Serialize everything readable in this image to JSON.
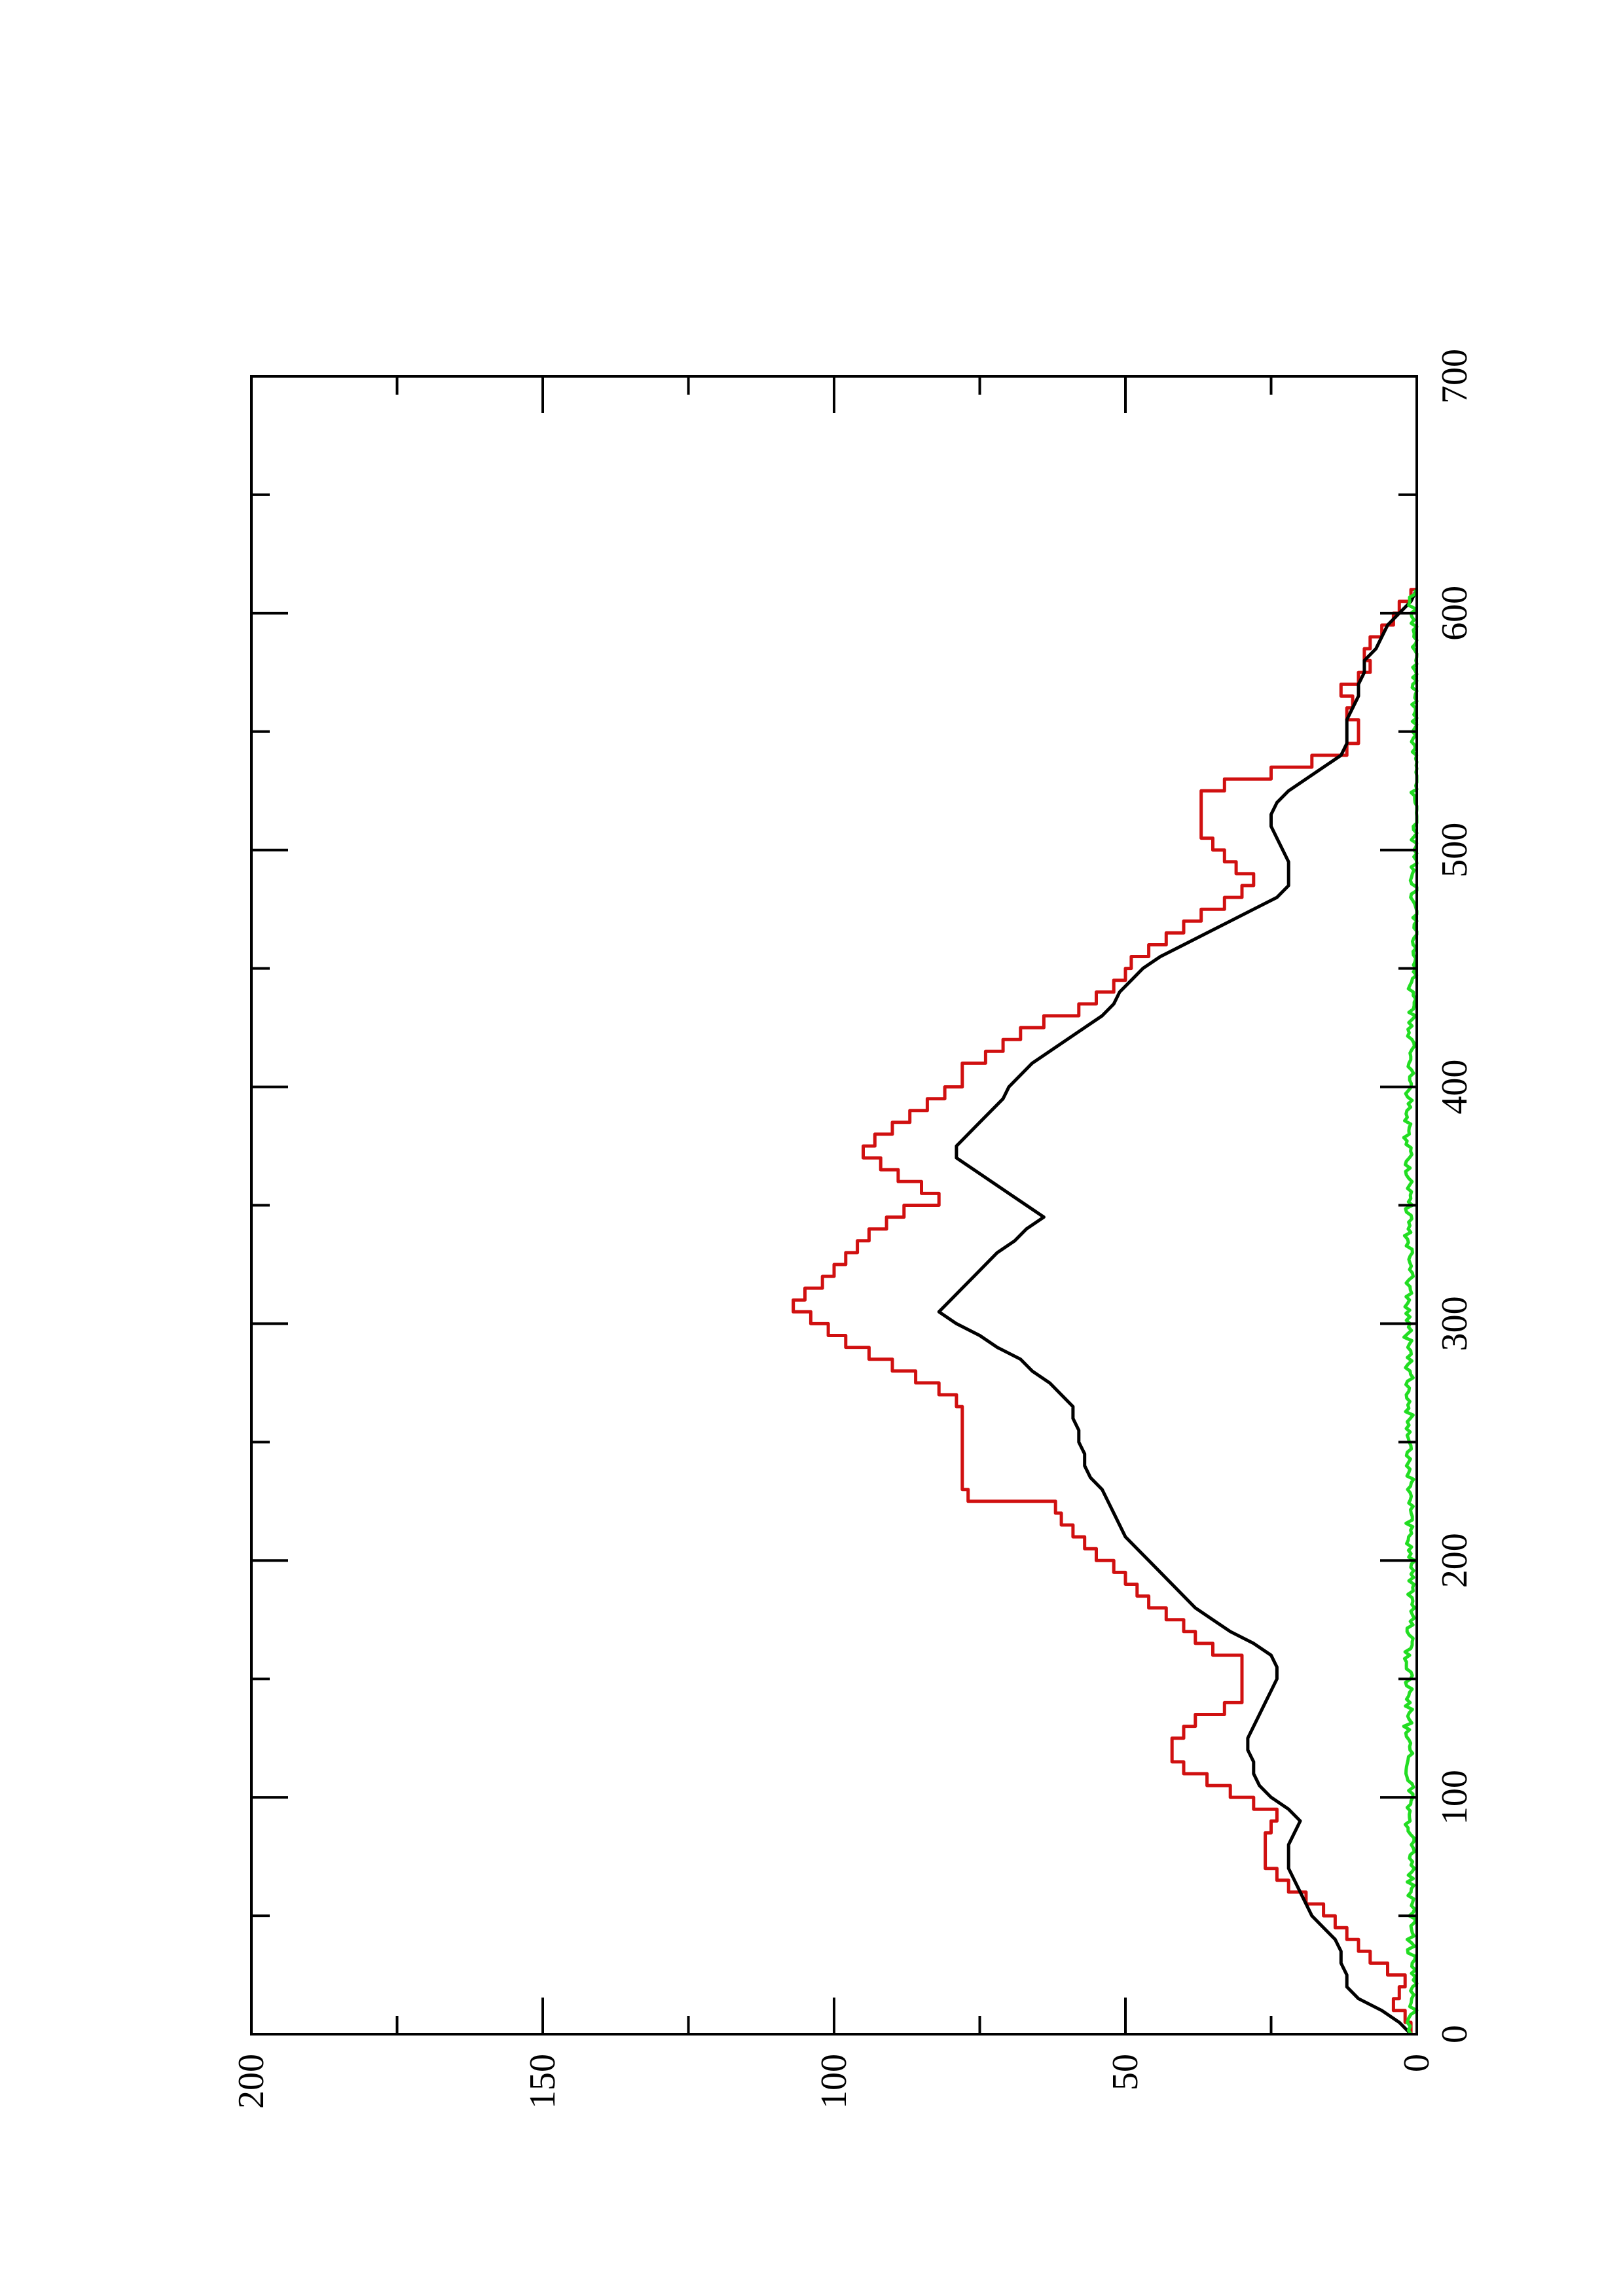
{
  "chart_data": {
    "type": "line",
    "title": "",
    "xlabel": "",
    "ylabel": "",
    "orientation": "rotated-90-ccw",
    "xlim": [
      0,
      700
    ],
    "ylim": [
      0,
      200
    ],
    "x_ticks": [
      0,
      100,
      200,
      300,
      400,
      500,
      600,
      700
    ],
    "y_ticks": [
      0,
      50,
      100,
      150,
      200
    ],
    "x_tick_labels": [
      "0",
      "100",
      "200",
      "300",
      "400",
      "500",
      "600",
      "700"
    ],
    "y_tick_labels": [
      "0",
      "50",
      "100",
      "150",
      "200"
    ],
    "grid": false,
    "legend": "none",
    "series": [
      {
        "color": "#d01010",
        "style": "step",
        "points": [
          [
            0,
            1
          ],
          [
            5,
            2
          ],
          [
            10,
            4
          ],
          [
            15,
            3
          ],
          [
            20,
            2
          ],
          [
            25,
            5
          ],
          [
            30,
            8
          ],
          [
            35,
            10
          ],
          [
            40,
            12
          ],
          [
            45,
            14
          ],
          [
            50,
            16
          ],
          [
            55,
            19
          ],
          [
            60,
            22
          ],
          [
            65,
            24
          ],
          [
            70,
            26
          ],
          [
            75,
            26
          ],
          [
            80,
            26
          ],
          [
            85,
            25
          ],
          [
            90,
            24
          ],
          [
            95,
            28
          ],
          [
            100,
            32
          ],
          [
            105,
            36
          ],
          [
            110,
            40
          ],
          [
            115,
            42
          ],
          [
            120,
            42
          ],
          [
            125,
            40
          ],
          [
            130,
            38
          ],
          [
            135,
            33
          ],
          [
            140,
            30
          ],
          [
            145,
            30
          ],
          [
            150,
            30
          ],
          [
            155,
            30
          ],
          [
            160,
            35
          ],
          [
            165,
            38
          ],
          [
            170,
            40
          ],
          [
            175,
            43
          ],
          [
            180,
            46
          ],
          [
            185,
            48
          ],
          [
            190,
            50
          ],
          [
            195,
            52
          ],
          [
            200,
            55
          ],
          [
            205,
            57
          ],
          [
            210,
            59
          ],
          [
            215,
            61
          ],
          [
            220,
            62
          ],
          [
            225,
            77
          ],
          [
            230,
            78
          ],
          [
            260,
            78
          ],
          [
            265,
            79
          ],
          [
            270,
            82
          ],
          [
            275,
            86
          ],
          [
            280,
            90
          ],
          [
            285,
            94
          ],
          [
            290,
            98
          ],
          [
            295,
            101
          ],
          [
            300,
            104
          ],
          [
            305,
            107
          ],
          [
            310,
            105
          ],
          [
            315,
            102
          ],
          [
            320,
            100
          ],
          [
            325,
            98
          ],
          [
            330,
            96
          ],
          [
            335,
            94
          ],
          [
            340,
            91
          ],
          [
            345,
            88
          ],
          [
            350,
            82
          ],
          [
            355,
            85
          ],
          [
            360,
            89
          ],
          [
            365,
            92
          ],
          [
            370,
            95
          ],
          [
            375,
            93
          ],
          [
            380,
            90
          ],
          [
            385,
            87
          ],
          [
            390,
            84
          ],
          [
            395,
            81
          ],
          [
            400,
            78
          ],
          [
            405,
            78
          ],
          [
            410,
            74
          ],
          [
            415,
            71
          ],
          [
            420,
            68
          ],
          [
            425,
            64
          ],
          [
            430,
            58
          ],
          [
            435,
            55
          ],
          [
            440,
            52
          ],
          [
            445,
            50
          ],
          [
            450,
            49
          ],
          [
            455,
            46
          ],
          [
            460,
            43
          ],
          [
            465,
            40
          ],
          [
            470,
            37
          ],
          [
            475,
            33
          ],
          [
            480,
            30
          ],
          [
            485,
            28
          ],
          [
            490,
            31
          ],
          [
            495,
            33
          ],
          [
            500,
            35
          ],
          [
            505,
            37
          ],
          [
            510,
            37
          ],
          [
            515,
            37
          ],
          [
            520,
            37
          ],
          [
            525,
            33
          ],
          [
            530,
            25
          ],
          [
            535,
            18
          ],
          [
            540,
            12
          ],
          [
            545,
            10
          ],
          [
            550,
            10
          ],
          [
            555,
            12
          ],
          [
            560,
            11
          ],
          [
            565,
            13
          ],
          [
            570,
            10
          ],
          [
            575,
            8
          ],
          [
            580,
            9
          ],
          [
            585,
            8
          ],
          [
            590,
            6
          ],
          [
            595,
            4
          ],
          [
            600,
            3
          ],
          [
            605,
            1
          ],
          [
            610,
            0
          ]
        ]
      },
      {
        "color": "#000000",
        "style": "line",
        "points": [
          [
            0,
            1
          ],
          [
            5,
            3
          ],
          [
            10,
            6
          ],
          [
            15,
            10
          ],
          [
            20,
            12
          ],
          [
            25,
            12
          ],
          [
            30,
            13
          ],
          [
            35,
            13
          ],
          [
            40,
            14
          ],
          [
            45,
            16
          ],
          [
            50,
            18
          ],
          [
            55,
            19
          ],
          [
            60,
            20
          ],
          [
            65,
            21
          ],
          [
            70,
            22
          ],
          [
            75,
            22
          ],
          [
            80,
            22
          ],
          [
            85,
            21
          ],
          [
            90,
            20
          ],
          [
            95,
            22
          ],
          [
            100,
            25
          ],
          [
            105,
            27
          ],
          [
            110,
            28
          ],
          [
            115,
            28
          ],
          [
            120,
            29
          ],
          [
            125,
            29
          ],
          [
            130,
            28
          ],
          [
            135,
            27
          ],
          [
            140,
            26
          ],
          [
            145,
            25
          ],
          [
            150,
            24
          ],
          [
            155,
            24
          ],
          [
            160,
            25
          ],
          [
            165,
            28
          ],
          [
            170,
            32
          ],
          [
            175,
            35
          ],
          [
            180,
            38
          ],
          [
            185,
            40
          ],
          [
            190,
            42
          ],
          [
            195,
            44
          ],
          [
            200,
            46
          ],
          [
            205,
            48
          ],
          [
            210,
            50
          ],
          [
            215,
            51
          ],
          [
            220,
            52
          ],
          [
            225,
            53
          ],
          [
            230,
            54
          ],
          [
            235,
            56
          ],
          [
            240,
            57
          ],
          [
            245,
            57
          ],
          [
            250,
            58
          ],
          [
            255,
            58
          ],
          [
            260,
            59
          ],
          [
            265,
            59
          ],
          [
            270,
            61
          ],
          [
            275,
            63
          ],
          [
            280,
            66
          ],
          [
            285,
            68
          ],
          [
            290,
            72
          ],
          [
            295,
            75
          ],
          [
            300,
            79
          ],
          [
            305,
            82
          ],
          [
            310,
            80
          ],
          [
            315,
            78
          ],
          [
            320,
            76
          ],
          [
            325,
            74
          ],
          [
            330,
            72
          ],
          [
            335,
            69
          ],
          [
            340,
            67
          ],
          [
            345,
            64
          ],
          [
            350,
            67
          ],
          [
            355,
            70
          ],
          [
            360,
            73
          ],
          [
            365,
            76
          ],
          [
            370,
            79
          ],
          [
            375,
            79
          ],
          [
            380,
            77
          ],
          [
            385,
            75
          ],
          [
            390,
            73
          ],
          [
            395,
            71
          ],
          [
            400,
            70
          ],
          [
            405,
            68
          ],
          [
            410,
            66
          ],
          [
            415,
            63
          ],
          [
            420,
            60
          ],
          [
            425,
            57
          ],
          [
            430,
            54
          ],
          [
            435,
            52
          ],
          [
            440,
            51
          ],
          [
            445,
            49
          ],
          [
            450,
            47
          ],
          [
            455,
            44
          ],
          [
            460,
            40
          ],
          [
            465,
            36
          ],
          [
            470,
            32
          ],
          [
            475,
            28
          ],
          [
            480,
            24
          ],
          [
            485,
            22
          ],
          [
            490,
            22
          ],
          [
            495,
            22
          ],
          [
            500,
            23
          ],
          [
            505,
            24
          ],
          [
            510,
            25
          ],
          [
            515,
            25
          ],
          [
            520,
            24
          ],
          [
            525,
            22
          ],
          [
            530,
            19
          ],
          [
            535,
            16
          ],
          [
            540,
            13
          ],
          [
            545,
            12
          ],
          [
            550,
            12
          ],
          [
            555,
            12
          ],
          [
            560,
            11
          ],
          [
            565,
            10
          ],
          [
            570,
            10
          ],
          [
            575,
            9
          ],
          [
            580,
            9
          ],
          [
            585,
            7
          ],
          [
            590,
            6
          ],
          [
            595,
            5
          ],
          [
            600,
            3
          ],
          [
            605,
            1
          ],
          [
            610,
            0
          ]
        ]
      },
      {
        "color": "#22dd22",
        "style": "noisy",
        "amplitude": 0.7,
        "points": [
          [
            0,
            1
          ],
          [
            5,
            2
          ],
          [
            10,
            0.5
          ],
          [
            15,
            1
          ],
          [
            20,
            0.5
          ],
          [
            30,
            0.8
          ],
          [
            40,
            1
          ],
          [
            50,
            0.6
          ],
          [
            60,
            1.2
          ],
          [
            70,
            0.8
          ],
          [
            80,
            1
          ],
          [
            90,
            1.4
          ],
          [
            100,
            1
          ],
          [
            110,
            1.2
          ],
          [
            120,
            1.4
          ],
          [
            130,
            1.6
          ],
          [
            140,
            1.2
          ],
          [
            150,
            1.4
          ],
          [
            160,
            1.6
          ],
          [
            170,
            1.2
          ],
          [
            180,
            1
          ],
          [
            190,
            1.2
          ],
          [
            200,
            1
          ],
          [
            210,
            1.2
          ],
          [
            220,
            1.4
          ],
          [
            230,
            1
          ],
          [
            240,
            1.2
          ],
          [
            250,
            1
          ],
          [
            260,
            1.2
          ],
          [
            270,
            1.4
          ],
          [
            280,
            1.2
          ],
          [
            290,
            1.5
          ],
          [
            300,
            1.6
          ],
          [
            310,
            1.4
          ],
          [
            320,
            1.2
          ],
          [
            330,
            1.4
          ],
          [
            340,
            1.6
          ],
          [
            350,
            1.4
          ],
          [
            360,
            1.2
          ],
          [
            370,
            1.4
          ],
          [
            380,
            1.6
          ],
          [
            390,
            1.4
          ],
          [
            400,
            1.2
          ],
          [
            410,
            1
          ],
          [
            420,
            1
          ],
          [
            430,
            0.8
          ],
          [
            440,
            0.8
          ],
          [
            450,
            0.6
          ],
          [
            460,
            0.5
          ],
          [
            470,
            0.5
          ],
          [
            480,
            0.4
          ],
          [
            490,
            0.4
          ],
          [
            500,
            0.3
          ],
          [
            510,
            0.3
          ],
          [
            520,
            0.3
          ],
          [
            530,
            0.4
          ],
          [
            540,
            0.3
          ],
          [
            550,
            0.4
          ],
          [
            560,
            0.3
          ],
          [
            570,
            0.4
          ],
          [
            580,
            0.3
          ],
          [
            590,
            0.5
          ],
          [
            600,
            0.6
          ],
          [
            605,
            0.8
          ],
          [
            610,
            0.3
          ]
        ]
      }
    ]
  }
}
